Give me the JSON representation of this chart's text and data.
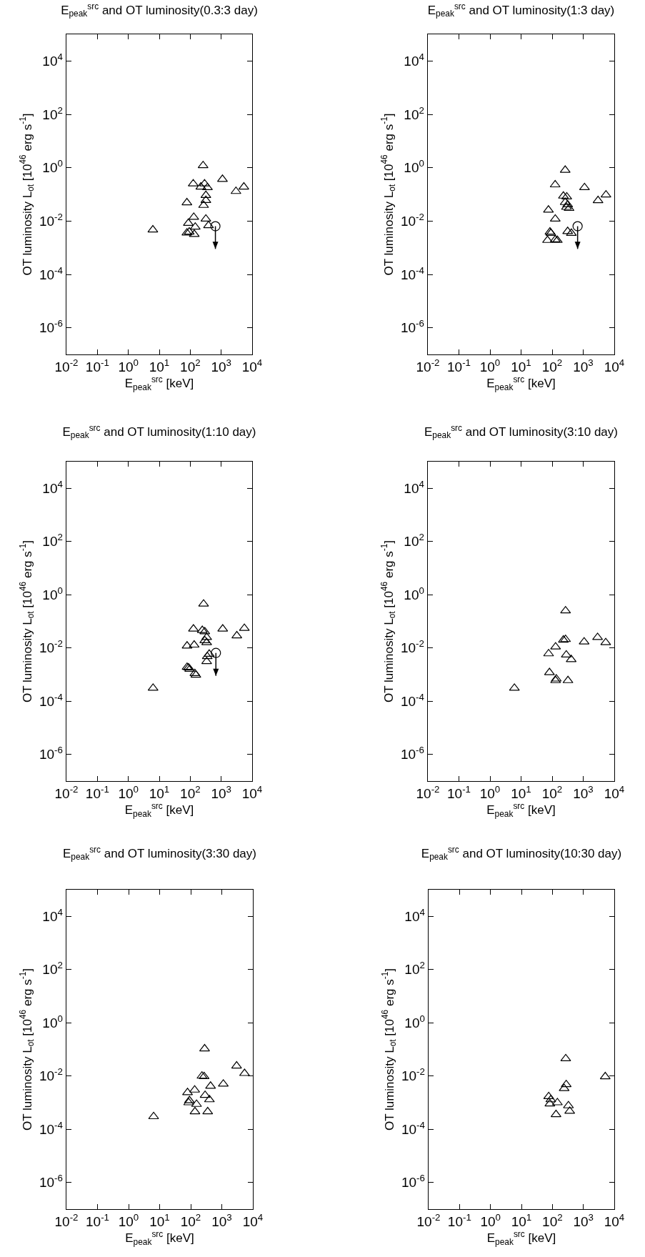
{
  "chart_data": [
    {
      "type": "scatter",
      "title": "E$_{peak}$$^{src}$ and OT luminosity(0.3:3 day)",
      "xlabel": "E$_{peak}$$^{src}$ [keV]",
      "ylabel": "OT luminosity L$_{ot}$ [10$^{46}$ erg s$^{-1}$]",
      "log": "xy",
      "grid": false,
      "xlim": [
        0.01,
        10000
      ],
      "ylim": [
        1e-07,
        100000
      ],
      "xticks": [
        {
          "value": 0.01,
          "label": "10$^{-2}$"
        },
        {
          "value": 0.1,
          "label": "10$^{-1}$"
        },
        {
          "value": 1,
          "label": "10$^{0}$"
        },
        {
          "value": 10,
          "label": "10$^{1}$"
        },
        {
          "value": 100,
          "label": "10$^{2}$"
        },
        {
          "value": 1000,
          "label": "10$^{3}$"
        },
        {
          "value": 10000,
          "label": "10$^{4}$"
        }
      ],
      "yticks": [
        {
          "value": 1e-06,
          "label": "10$^{-6}$"
        },
        {
          "value": 0.0001,
          "label": "10$^{-4}$"
        },
        {
          "value": 0.01,
          "label": "10$^{-2}$"
        },
        {
          "value": 1,
          "label": "10$^{0}$"
        },
        {
          "value": 100,
          "label": "10$^{2}$"
        },
        {
          "value": 10000,
          "label": "10$^{4}$"
        }
      ],
      "series": [
        {
          "color": "#000000",
          "marker": "triangle",
          "x": [
            6.2,
            260,
            1100,
            125,
            220,
            290,
            360,
            3000,
            5400,
            78,
            320,
            320,
            270,
            130,
            87,
            320,
            145,
            390,
            78,
            93,
            135
          ],
          "values": [
            0.0047,
            1.2,
            0.37,
            0.25,
            0.19,
            0.25,
            0.18,
            0.13,
            0.19,
            0.049,
            0.092,
            0.06,
            0.039,
            0.014,
            0.0083,
            0.012,
            0.006,
            0.0068,
            0.0036,
            0.0039,
            0.0032
          ]
        },
        {
          "color": "#000000",
          "marker": "circle",
          "x": [
            650
          ],
          "values": [
            0.0064
          ],
          "errors": [
            [
              0.0009,
              0.0064
            ]
          ]
        }
      ]
    },
    {
      "type": "scatter",
      "title": "E$_{peak}$$^{src}$ and OT luminosity(1:3 day)",
      "xlabel": "E$_{peak}$$^{src}$ [keV]",
      "ylabel": "OT luminosity L$_{ot}$ [10$^{46}$ erg s$^{-1}$]",
      "log": "xy",
      "grid": false,
      "xlim": [
        0.01,
        10000
      ],
      "ylim": [
        1e-07,
        100000
      ],
      "xticks": [
        {
          "value": 0.01,
          "label": "10$^{-2}$"
        },
        {
          "value": 0.1,
          "label": "10$^{-1}$"
        },
        {
          "value": 1,
          "label": "10$^{0}$"
        },
        {
          "value": 10,
          "label": "10$^{1}$"
        },
        {
          "value": 100,
          "label": "10$^{2}$"
        },
        {
          "value": 1000,
          "label": "10$^{3}$"
        },
        {
          "value": 10000,
          "label": "10$^{4}$"
        }
      ],
      "yticks": [
        {
          "value": 1e-06,
          "label": "10$^{-6}$"
        },
        {
          "value": 0.0001,
          "label": "10$^{-4}$"
        },
        {
          "value": 0.01,
          "label": "10$^{-2}$"
        },
        {
          "value": 1,
          "label": "10$^{0}$"
        },
        {
          "value": 100,
          "label": "10$^{2}$"
        },
        {
          "value": 10000,
          "label": "10$^{4}$"
        }
      ],
      "series": [
        {
          "color": "#000000",
          "marker": "triangle",
          "x": [
            263,
            125,
            1100,
            5400,
            3000,
            230,
            295,
            263,
            316,
            350,
            290,
            76,
            126,
            85,
            91,
            316,
            415,
            71,
            126,
            147
          ],
          "values": [
            0.81,
            0.23,
            0.18,
            0.096,
            0.059,
            0.087,
            0.081,
            0.05,
            0.041,
            0.03,
            0.033,
            0.026,
            0.012,
            0.0039,
            0.0035,
            0.0041,
            0.0035,
            0.0019,
            0.002,
            0.0019
          ]
        },
        {
          "color": "#000000",
          "marker": "circle",
          "x": [
            660
          ],
          "values": [
            0.0064
          ],
          "errors": [
            [
              0.0009,
              0.0064
            ]
          ]
        }
      ]
    },
    {
      "type": "scatter",
      "title": "E$_{peak}$$^{src}$ and OT luminosity(1:10 day)",
      "xlabel": "E$_{peak}$$^{src}$ [keV]",
      "ylabel": "OT luminosity L$_{ot}$ [10$^{46}$ erg s$^{-1}$]",
      "log": "xy",
      "grid": false,
      "xlim": [
        0.01,
        10000
      ],
      "ylim": [
        1e-07,
        100000
      ],
      "xticks": [
        {
          "value": 0.01,
          "label": "10$^{-2}$"
        },
        {
          "value": 0.1,
          "label": "10$^{-1}$"
        },
        {
          "value": 1,
          "label": "10$^{0}$"
        },
        {
          "value": 10,
          "label": "10$^{1}$"
        },
        {
          "value": 100,
          "label": "10$^{2}$"
        },
        {
          "value": 1000,
          "label": "10$^{3}$"
        },
        {
          "value": 10000,
          "label": "10$^{4}$"
        }
      ],
      "yticks": [
        {
          "value": 1e-06,
          "label": "10$^{-6}$"
        },
        {
          "value": 0.0001,
          "label": "10$^{-4}$"
        },
        {
          "value": 0.01,
          "label": "10$^{-2}$"
        },
        {
          "value": 1,
          "label": "10$^{0}$"
        },
        {
          "value": 100,
          "label": "10$^{2}$"
        },
        {
          "value": 10000,
          "label": "10$^{4}$"
        }
      ],
      "series": [
        {
          "color": "#000000",
          "marker": "triangle",
          "x": [
            6.3,
            270,
            127,
            245,
            295,
            1120,
            5600,
            3200,
            340,
            295,
            340,
            79,
            134,
            410,
            355,
            340,
            79,
            88,
            96,
            141,
            152
          ],
          "values": [
            0.00031,
            0.45,
            0.052,
            0.046,
            0.041,
            0.052,
            0.055,
            0.029,
            0.025,
            0.019,
            0.016,
            0.012,
            0.013,
            0.0059,
            0.0048,
            0.0031,
            0.0019,
            0.0018,
            0.0016,
            0.0011,
            0.00096
          ]
        },
        {
          "color": "#000000",
          "marker": "circle",
          "x": [
            675
          ],
          "values": [
            0.0065
          ],
          "errors": [
            [
              0.0009,
              0.0065
            ]
          ]
        }
      ]
    },
    {
      "type": "scatter",
      "title": "E$_{peak}$$^{src}$ and OT luminosity(3:10 day)",
      "xlabel": "E$_{peak}$$^{src}$ [keV]",
      "ylabel": "OT luminosity L$_{ot}$ [10$^{46}$ erg s$^{-1}$]",
      "log": "xy",
      "grid": false,
      "xlim": [
        0.01,
        10000
      ],
      "ylim": [
        1e-07,
        100000
      ],
      "xticks": [
        {
          "value": 0.01,
          "label": "10$^{-2}$"
        },
        {
          "value": 0.1,
          "label": "10$^{-1}$"
        },
        {
          "value": 1,
          "label": "10$^{0}$"
        },
        {
          "value": 10,
          "label": "10$^{1}$"
        },
        {
          "value": 100,
          "label": "10$^{2}$"
        },
        {
          "value": 1000,
          "label": "10$^{3}$"
        },
        {
          "value": 10000,
          "label": "10$^{4}$"
        }
      ],
      "yticks": [
        {
          "value": 1e-06,
          "label": "10$^{-6}$"
        },
        {
          "value": 0.0001,
          "label": "10$^{-4}$"
        },
        {
          "value": 0.01,
          "label": "10$^{-2}$"
        },
        {
          "value": 1,
          "label": "10$^{0}$"
        },
        {
          "value": 100,
          "label": "10$^{2}$"
        },
        {
          "value": 10000,
          "label": "10$^{4}$"
        }
      ],
      "series": [
        {
          "color": "#000000",
          "marker": "triangle",
          "x": [
            6.1,
            270,
            230,
            270,
            1070,
            2900,
            5300,
            129,
            77,
            285,
            410,
            82,
            136,
            129,
            323
          ],
          "values": [
            0.00031,
            0.25,
            0.02,
            0.021,
            0.017,
            0.025,
            0.016,
            0.011,
            0.0061,
            0.0055,
            0.0037,
            0.0012,
            0.00069,
            0.0006,
            0.0006
          ]
        }
      ]
    },
    {
      "type": "scatter",
      "title": "E$_{peak}$$^{src}$ and OT luminosity(3:30 day)",
      "xlabel": "E$_{peak}$$^{src}$ [keV]",
      "ylabel": "OT luminosity L$_{ot}$ [10$^{46}$ erg s$^{-1}$]",
      "log": "xy",
      "grid": false,
      "xlim": [
        0.01,
        10000
      ],
      "ylim": [
        1e-07,
        100000
      ],
      "xticks": [
        {
          "value": 0.01,
          "label": "10$^{-2}$"
        },
        {
          "value": 0.1,
          "label": "10$^{-1}$"
        },
        {
          "value": 1,
          "label": "10$^{0}$"
        },
        {
          "value": 10,
          "label": "10$^{1}$"
        },
        {
          "value": 100,
          "label": "10$^{2}$"
        },
        {
          "value": 1000,
          "label": "10$^{3}$"
        },
        {
          "value": 10000,
          "label": "10$^{4}$"
        }
      ],
      "yticks": [
        {
          "value": 1e-06,
          "label": "10$^{-6}$"
        },
        {
          "value": 0.0001,
          "label": "10$^{-4}$"
        },
        {
          "value": 0.01,
          "label": "10$^{-2}$"
        },
        {
          "value": 1,
          "label": "10$^{0}$"
        },
        {
          "value": 100,
          "label": "10$^{2}$"
        },
        {
          "value": 10000,
          "label": "10$^{4}$"
        }
      ],
      "series": [
        {
          "color": "#000000",
          "marker": "triangle",
          "x": [
            6.4,
            280,
            3000,
            5400,
            230,
            270,
            1120,
            435,
            134,
            79,
            290,
            400,
            91,
            86,
            154,
            137,
            352
          ],
          "values": [
            0.0003,
            0.106,
            0.024,
            0.0126,
            0.01,
            0.0096,
            0.005,
            0.0042,
            0.003,
            0.0024,
            0.0019,
            0.0013,
            0.0012,
            0.001,
            0.00087,
            0.00046,
            0.00046
          ]
        }
      ]
    },
    {
      "type": "scatter",
      "title": "E$_{peak}$$^{src}$ and OT luminosity(10:30 day)",
      "xlabel": "E$_{peak}$$^{src}$ [keV]",
      "ylabel": "OT luminosity L$_{ot}$ [10$^{46}$ erg s$^{-1}$]",
      "log": "xy",
      "grid": false,
      "xlim": [
        0.01,
        10000
      ],
      "ylim": [
        1e-07,
        100000
      ],
      "xticks": [
        {
          "value": 0.01,
          "label": "10$^{-2}$"
        },
        {
          "value": 0.1,
          "label": "10$^{-1}$"
        },
        {
          "value": 1,
          "label": "10$^{0}$"
        },
        {
          "value": 10,
          "label": "10$^{1}$"
        },
        {
          "value": 100,
          "label": "10$^{2}$"
        },
        {
          "value": 1000,
          "label": "10$^{3}$"
        },
        {
          "value": 10000,
          "label": "10$^{4}$"
        }
      ],
      "yticks": [
        {
          "value": 1e-06,
          "label": "10$^{-6}$"
        },
        {
          "value": 0.0001,
          "label": "10$^{-4}$"
        },
        {
          "value": 0.01,
          "label": "10$^{-2}$"
        },
        {
          "value": 1,
          "label": "10$^{0}$"
        },
        {
          "value": 100,
          "label": "10$^{2}$"
        },
        {
          "value": 10000,
          "label": "10$^{4}$"
        }
      ],
      "series": [
        {
          "color": "#000000",
          "marker": "triangle",
          "x": [
            270,
            5100,
            280,
            240,
            76,
            89,
            83,
            145,
            330,
            363,
            131
          ],
          "values": [
            0.045,
            0.0095,
            0.0048,
            0.0034,
            0.0017,
            0.0013,
            0.00091,
            0.001,
            0.00077,
            0.00048,
            0.00036
          ]
        }
      ]
    }
  ]
}
